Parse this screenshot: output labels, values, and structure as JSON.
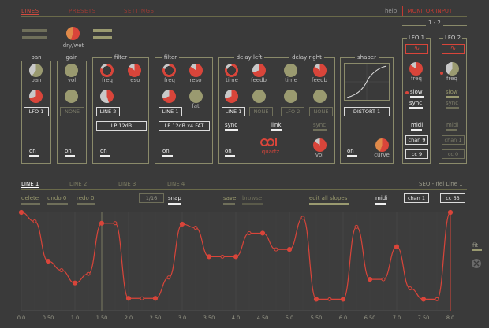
{
  "tabs": [
    "LINES",
    "PRESETS",
    "SETTINGS"
  ],
  "help": "help",
  "mp_button": "MONITOR INPUT",
  "drywet": "dry/wet",
  "modules": {
    "pan": {
      "title": "pan",
      "knob": "pan",
      "lfo": "LFO 1",
      "on": "on"
    },
    "gain": {
      "title": "gain",
      "knob": "vol",
      "lfo": "NONE",
      "on": "on"
    },
    "filter1": {
      "title": "filter",
      "knob1": "freq",
      "knob2": "reso",
      "lfo": "LINE 2",
      "type": "LP 12dB",
      "on": "on"
    },
    "filter2": {
      "title": "filter",
      "knob1": "freq",
      "knob2": "reso",
      "knob3": "fat",
      "lfo": "LINE 1",
      "type": "LP 12dB x4 FAT",
      "on": "on"
    },
    "delayleft": {
      "title": "delay left",
      "knob1": "time",
      "knob2": "feedb",
      "lfo1": "LINE 1",
      "lfo2": "NONE",
      "sync": "sync",
      "link": "link",
      "on": "on",
      "logo": "quartz"
    },
    "delayright": {
      "title": "delay right",
      "knob1": "time",
      "knob2": "feedb",
      "lfo1": "LFO 2",
      "lfo2": "NONE",
      "sync": "sync",
      "vol": "vol"
    },
    "shaper": {
      "title": "shaper",
      "type": "DISTORT 1",
      "on": "on",
      "curve": "curve"
    }
  },
  "lfo_group": "1 - 2",
  "lfo1": {
    "title": "LFO 1",
    "wave": "∿",
    "freq": "freq",
    "slow": "slow",
    "sync": "sync",
    "midi": "midi",
    "chan": "chan 9",
    "cc": "cc 9"
  },
  "lfo2": {
    "title": "LFO 2",
    "wave": "∿",
    "freq": "freq",
    "slow": "slow",
    "sync": "sync",
    "midi": "midi",
    "chan": "chan 1",
    "cc": "cc 0"
  },
  "line_tabs": [
    "LINE 1",
    "LINE 2",
    "LINE 3",
    "LINE 4"
  ],
  "seq_label": "SEQ - Ifel Line 1",
  "toolbar": {
    "delete": "delete",
    "undo": "undo 0",
    "redo": "redo 0",
    "grid": "1/16",
    "snap": "snap",
    "save": "save",
    "browse": "browse",
    "edit_all": "edit all slopes",
    "midi": "midi",
    "chan": "chan 1",
    "cc": "cc 63"
  },
  "fit": "fit",
  "ticks": [
    "0.0",
    "0.50",
    "1.0",
    "1.50",
    "2.0",
    "2.50",
    "3.0",
    "3.50",
    "4.0",
    "4.50",
    "5.0",
    "5.50",
    "6.0",
    "6.50",
    "7.0",
    "7.50",
    "8.0"
  ],
  "chart_data": {
    "type": "line",
    "x_range": [
      0,
      8
    ],
    "y_range": [
      0,
      1
    ],
    "points": [
      [
        0,
        1.0
      ],
      [
        0.25,
        0.9
      ],
      [
        0.5,
        0.46
      ],
      [
        0.75,
        0.36
      ],
      [
        1.0,
        0.22
      ],
      [
        1.25,
        0.32
      ],
      [
        1.5,
        0.88
      ],
      [
        1.75,
        0.88
      ],
      [
        2.0,
        0.05
      ],
      [
        2.25,
        0.05
      ],
      [
        2.5,
        0.05
      ],
      [
        2.75,
        0.28
      ],
      [
        3.0,
        0.87
      ],
      [
        3.25,
        0.83
      ],
      [
        3.5,
        0.51
      ],
      [
        3.75,
        0.51
      ],
      [
        4.0,
        0.51
      ],
      [
        4.25,
        0.77
      ],
      [
        4.5,
        0.77
      ],
      [
        4.75,
        0.59
      ],
      [
        5.0,
        0.59
      ],
      [
        5.25,
        0.94
      ],
      [
        5.5,
        0.04
      ],
      [
        5.75,
        0.04
      ],
      [
        6.0,
        0.04
      ],
      [
        6.25,
        0.84
      ],
      [
        6.5,
        0.26
      ],
      [
        6.75,
        0.26
      ],
      [
        7.0,
        0.62
      ],
      [
        7.25,
        0.16
      ],
      [
        7.5,
        0.04
      ],
      [
        7.75,
        0.04
      ],
      [
        8.0,
        1.0
      ]
    ]
  }
}
